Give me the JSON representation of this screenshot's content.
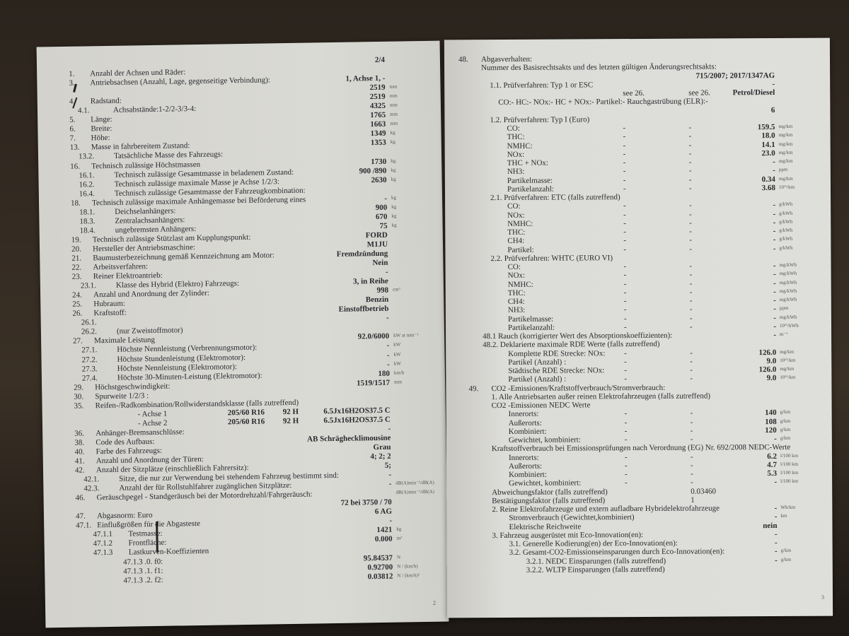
{
  "left_page": {
    "page_number": "2",
    "rows": [
      {
        "v": "2/4"
      },
      {
        "n": "1.",
        "l": "Anzahl der Achsen und Räder:"
      },
      {
        "n": "3.",
        "l": "Antriebsachsen (Anzahl, Lage, gegenseitige Verbindung):",
        "v": "1, Achse 1, -"
      },
      {
        "v": "2519",
        "u": "mm"
      },
      {
        "n": "4.",
        "l": "Radstand:",
        "v": "2519",
        "u": "mm"
      },
      {
        "n": "4.1.",
        "l": "Achsabstände:1-2/2-3/3-4:",
        "i": 1,
        "v": "4325",
        "u": "mm"
      },
      {
        "n": "5.",
        "l": "Länge:",
        "v": "1765",
        "u": "mm"
      },
      {
        "n": "6.",
        "l": "Breite:",
        "v": "1663",
        "u": "mm"
      },
      {
        "n": "7.",
        "l": "Höhe:",
        "v": "1349",
        "u": "kg"
      },
      {
        "n": "13.",
        "l": "Masse in fahrbereitem Zustand:",
        "v": "1353",
        "u": "kg"
      },
      {
        "n": "13.2.",
        "l": "Tatsächliche Masse des Fahrzeugs:",
        "i": 1
      },
      {
        "n": "16.",
        "l": "Technisch zulässige Höchstmassen",
        "v": "1730",
        "u": "kg"
      },
      {
        "n": "16.1.",
        "l": "Technisch zulässige Gesamtmasse in beladenem Zustand:",
        "i": 1,
        "v": "900 /890",
        "u": "kg"
      },
      {
        "n": "16.2.",
        "l": "Technisch zulässige maximale Masse je Achse 1/2/3:",
        "i": 1,
        "v": "2630",
        "u": "kg"
      },
      {
        "n": "16.4.",
        "l": "Technisch zulässige Gesamtmasse der Fahrzeugkombination:",
        "i": 1
      },
      {
        "n": "18.",
        "l": "Technisch zulässige maximale Anhängemasse bei Beförderung eines",
        "v": "-",
        "u": "kg"
      },
      {
        "n": "18.1.",
        "l": "Deichselanhängers:",
        "i": 1,
        "v": "900",
        "u": "kg"
      },
      {
        "n": "18.3.",
        "l": "Zentralachsanhängers:",
        "i": 1,
        "v": "670",
        "u": "kg"
      },
      {
        "n": "18.4.",
        "l": "ungebremsten Anhängers:",
        "i": 1,
        "v": "75",
        "u": "kg"
      },
      {
        "n": "19.",
        "l": "Technisch zulässige Stützlast am Kupplungspunkt:",
        "v": "FORD"
      },
      {
        "n": "20.",
        "l": "Hersteller der Antriebsmaschine:",
        "v": "M1JU"
      },
      {
        "n": "21.",
        "l": "Baumusterbezeichnung gemäß Kennzeichnung am Motor:",
        "v": "Fremdzündung"
      },
      {
        "n": "22.",
        "l": "Arbeitsverfahren:",
        "v": "Nein"
      },
      {
        "n": "23.",
        "l": "Reiner Elektroantrieb:",
        "v": "-"
      },
      {
        "n": "23.1.",
        "l": "Klasse des Hybrid (Elektro) Fahrzeugs:",
        "i": 1,
        "v": "3, in Reihe"
      },
      {
        "n": "24.",
        "l": "Anzahl und Anordnung der Zylinder:",
        "v": "998",
        "u": "cm³"
      },
      {
        "n": "25.",
        "l": "Hubraum:",
        "v": "Benzin"
      },
      {
        "n": "26.",
        "l": "Kraftstoff:",
        "v": "Einstoffbetrieb"
      },
      {
        "n": "26.1.",
        "l": "",
        "i": 1,
        "v": "-"
      },
      {
        "n": "26.2.",
        "l": "(nur Zweistoffmotor)",
        "i": 1
      },
      {
        "n": "27.",
        "l": "Maximale Leistung",
        "v": "92.0/6000",
        "u": "kW at min⁻¹"
      },
      {
        "n": "27.1.",
        "l": "Höchste Nennleistung (Verbrennungsmotor):",
        "i": 1,
        "v": "-",
        "u": "kW"
      },
      {
        "n": "27.2.",
        "l": "Höchste Stundenleistung (Elektromotor):",
        "i": 1,
        "v": "-",
        "u": "kW"
      },
      {
        "n": "27.3.",
        "l": "Höchste Nennleistung (Elektromotor):",
        "i": 1,
        "v": "-",
        "u": "kW"
      },
      {
        "n": "27.4.",
        "l": "Höchste 30-Minuten-Leistung (Elektromotor):",
        "i": 1,
        "v": "180",
        "u": "km/h"
      },
      {
        "n": "29.",
        "l": "Höchstgeschwindigkeit:",
        "v": "1519/1517",
        "u": "mm"
      },
      {
        "n": "30.",
        "l": "Spurweite 1/2/3 :"
      },
      {
        "n": "35.",
        "l": "Reifen-/Radkombination/Rollwiderstandsklasse (falls zutreffend)"
      },
      {
        "l": "- Achse 1",
        "i": 5,
        "c1": "205/60 R16",
        "c2": "92 H",
        "v": "6.5Jx16H2OS37.5 C"
      },
      {
        "l": "- Achse 2",
        "i": 5,
        "c1": "205/60 R16",
        "c2": "92 H",
        "v": "6.5Jx16H2OS37.5 C"
      },
      {
        "n": "36.",
        "l": "Anhänger-Bremsanschlüsse:",
        "v": "-"
      },
      {
        "n": "38.",
        "l": "Code des Aufbaus:",
        "v": "AB Schräghecklimousine"
      },
      {
        "n": "40.",
        "l": "Farbe des Fahrzeugs:",
        "v": "Grau"
      },
      {
        "n": "41.",
        "l": "Anzahl und Anordnung der Türen:",
        "v": "4; 2; 2"
      },
      {
        "n": "42.",
        "l": "Anzahl der Sitzplätze (einschließlich Fahrersitz):",
        "v": "5;"
      },
      {
        "n": "42.1.",
        "l": "Sitze, die nur zur Verwendung bei stehendem Fahrzeug bestimmt sind:",
        "i": 1,
        "v": "-"
      },
      {
        "n": "42.3.",
        "l": "Anzahl der für Rollstuhlfahrer zugänglichen Sitzplätze:",
        "i": 1,
        "v": "-",
        "u": "dB(A)min⁻¹/dB(A)"
      },
      {
        "n": "46.",
        "l": "Geräuschpegel - Standgeräusch bei der Motordrehzahl/Fahrgeräusch:",
        "u": "dB(A)min⁻¹/dB(A)"
      },
      {
        "v": "72 bei 3750 / 70"
      },
      {
        "n": "47.",
        "l": "Abgasnorm: Euro",
        "v": "6 AG"
      },
      {
        "n": "47.1.",
        "l": "Einflußgrößen für die Abgasteste",
        "v": "-"
      },
      {
        "n": "47.1.1",
        "l": "Testmasse:",
        "i": 2,
        "v": "1421",
        "u": "kg"
      },
      {
        "n": "47.1.2",
        "l": "Frontfläche:",
        "i": 2,
        "v": "0.000",
        "u": "m²"
      },
      {
        "n": "47.1.3",
        "l": "Lastkurven-Koeffizienten",
        "i": 2
      },
      {
        "n": "",
        "l": "47.1.3 .0. f0:",
        "i": 3,
        "v": "95.84537",
        "u": "N"
      },
      {
        "n": "",
        "l": "47.1.3 .1. f1:",
        "i": 3,
        "v": "0.92700",
        "u": "N / (km/h)"
      },
      {
        "n": "",
        "l": "47.1.3 .2. f2:",
        "i": 3,
        "v": "0.03812",
        "u": "N / (km/h)²"
      }
    ]
  },
  "right_page": {
    "page_number": "3",
    "rows": [
      {
        "n": "48.",
        "l": "Abgasverhalten:"
      },
      {
        "l": "Nummer des Basisrechtsakts und des letzten gültigen Änderungsrechtsakts:"
      },
      {
        "v": "715/2007; 2017/1347AG"
      },
      {
        "l": "1.1. Prüfverfahren: Typ 1 or ESC",
        "i": 1,
        "v": "-"
      },
      {
        "c1": "see 26.",
        "c2": "see 26.",
        "v": "Petrol/Diesel"
      },
      {
        "l": "CO:- HC:- NOx:- HC + NOx:- Partikel:- Rauchgastrübung (ELR):-",
        "i": 2
      },
      {
        "v": "6"
      },
      {
        "l": "1.2. Prüfverfahren: Typ I (Euro)",
        "i": 1
      },
      {
        "l": "CO:",
        "i": 3,
        "c1": "-",
        "c2": "-",
        "v": "159.5",
        "u": "mg/km"
      },
      {
        "l": "THC:",
        "i": 3,
        "c1": "-",
        "c2": "-",
        "v": "18.0",
        "u": "mg/km"
      },
      {
        "l": "NMHC:",
        "i": 3,
        "c1": "-",
        "c2": "-",
        "v": "14.1",
        "u": "mg/km"
      },
      {
        "l": "NOx:",
        "i": 3,
        "c1": "-",
        "c2": "-",
        "v": "23.0",
        "u": "mg/km"
      },
      {
        "l": "THC + NOx:",
        "i": 3,
        "c1": "-",
        "c2": "-",
        "v": "-",
        "u": "mg/km"
      },
      {
        "l": "NH3:",
        "i": 3,
        "c1": "-",
        "c2": "-",
        "v": "-",
        "u": "ppm"
      },
      {
        "l": "Partikelmasse:",
        "i": 3,
        "c1": "-",
        "c2": "-",
        "v": "0.34",
        "u": "mg/km"
      },
      {
        "l": "Partikelanzahl:",
        "i": 3,
        "c1": "-",
        "c2": "-",
        "v": "3.68",
        "u": "10¹¹/km"
      },
      {
        "l": "2.1. Prüfverfahren: ETC (falls zutreffend)",
        "i": 1
      },
      {
        "l": "CO:",
        "i": 3,
        "c1": "-",
        "c2": "-",
        "v": "-",
        "u": "g/kWh"
      },
      {
        "l": "NOx:",
        "i": 3,
        "c1": "-",
        "c2": "-",
        "v": "-",
        "u": "g/kWh"
      },
      {
        "l": "NMHC:",
        "i": 3,
        "c1": "-",
        "c2": "-",
        "v": "-",
        "u": "g/kWh"
      },
      {
        "l": "THC:",
        "i": 3,
        "c1": "-",
        "c2": "-",
        "v": "-",
        "u": "g/kWh"
      },
      {
        "l": "CH4:",
        "i": 3,
        "c1": "-",
        "c2": "-",
        "v": "-",
        "u": "g/kWh"
      },
      {
        "l": "Partikel:",
        "i": 3,
        "c1": "-",
        "c2": "-",
        "v": "-",
        "u": "g/kWh"
      },
      {
        "l": "2.2. Prüfverfahren: WHTC (EURO VI)",
        "i": 1
      },
      {
        "l": "CO:",
        "i": 3,
        "c1": "-",
        "c2": "-",
        "v": "-",
        "u": "mg/kWh"
      },
      {
        "l": "NOx:",
        "i": 3,
        "c1": "-",
        "c2": "-",
        "v": "-",
        "u": "mg/kWh"
      },
      {
        "l": "NMHC:",
        "i": 3,
        "c1": "-",
        "c2": "-",
        "v": "-",
        "u": "mg/kWh"
      },
      {
        "l": "THC:",
        "i": 3,
        "c1": "-",
        "c2": "-",
        "v": "-",
        "u": "mg/kWh"
      },
      {
        "l": "CH4:",
        "i": 3,
        "c1": "-",
        "c2": "-",
        "v": "-",
        "u": "mg/kWh"
      },
      {
        "l": "NH3:",
        "i": 3,
        "c1": "-",
        "c2": "-",
        "v": "-",
        "u": "ppm"
      },
      {
        "l": "Partikelmasse:",
        "i": 3,
        "c1": "-",
        "c2": "-",
        "v": "-",
        "u": "mg/kWh"
      },
      {
        "l": "Partikelanzahl:",
        "i": 3,
        "c1": "-",
        "c2": "-",
        "v": "-",
        "u": "10¹¹/kWh"
      },
      {
        "n": "",
        "l": "48.1 Rauch (korrigierter Wert des Absorptionskoeffizienten):",
        "i": 0,
        "v": "-",
        "u": "m⁻¹"
      },
      {
        "l": "48.2. Deklarierte maximale RDE Werte (falls zutreffend)"
      },
      {
        "l": "Komplette RDE Strecke: NOx:",
        "i": 3,
        "c1": "-",
        "c2": "-",
        "v": "126.0",
        "u": "mg/km"
      },
      {
        "l": "Partikel (Anzahl)                :",
        "i": 3,
        "c1": "-",
        "c2": "-",
        "v": "9.0",
        "u": "10¹¹/km"
      },
      {
        "l": "Städtische RDE Strecke: NOx:",
        "i": 3,
        "c1": "-",
        "c2": "-",
        "v": "126.0",
        "u": "mg/km"
      },
      {
        "l": "Partikel (Anzahl)                :",
        "i": 3,
        "c1": "-",
        "c2": "-",
        "v": "9.0",
        "u": "10¹¹/km"
      },
      {
        "n": "49.",
        "l": "CO2 -Emissionen/Kraftstoffverbrauch/Stromverbrauch:",
        "i": 1
      },
      {
        "l": "1. Alle Antriebsarten außer reinen Elektrofahrzeugen (falls zutreffend)",
        "i": 1
      },
      {
        "l": "CO2 -Emissionen NEDC Werte",
        "i": 1
      },
      {
        "l": "Innerorts:",
        "i": 3,
        "c1": "-",
        "c2": "-",
        "v": "140",
        "u": "g/km"
      },
      {
        "l": "Außerorts:",
        "i": 3,
        "c1": "-",
        "c2": "-",
        "v": "108",
        "u": "g/km"
      },
      {
        "l": "Kombiniert:",
        "i": 3,
        "c1": "-",
        "c2": "-",
        "v": "120",
        "u": "g/km"
      },
      {
        "l": "Gewichtet, kombiniert:",
        "i": 3,
        "c1": "-",
        "c2": "-",
        "v": "-",
        "u": "g/km"
      },
      {
        "l": "Kraftstoffverbrauch bei Emissionsprüfungen nach Verordnung (EG) Nr. 692/2008 NEDC-Werte",
        "i": 1
      },
      {
        "l": "Innerorts:",
        "i": 3,
        "c1": "-",
        "c2": "-",
        "v": "6.2",
        "u": "l/100 km"
      },
      {
        "l": "Außerorts:",
        "i": 3,
        "c1": "-",
        "c2": "-",
        "v": "4.7",
        "u": "l/100 km"
      },
      {
        "l": "Kombiniert:",
        "i": 3,
        "c1": "-",
        "c2": "-",
        "v": "5.3",
        "u": "l/100 km"
      },
      {
        "l": "Gewichtet, kombiniert:",
        "i": 3,
        "c1": "-",
        "c2": "-",
        "v": "-",
        "u": "l/100 km"
      },
      {
        "l": "Abweichungsfaktor (falls zutreffend)",
        "i": 1,
        "c2": "0.03460"
      },
      {
        "l": "Bestätigungsfaktor (falls zutreffend)",
        "i": 1,
        "c2": "1"
      },
      {
        "l": "2. Reine Elektrofahrzeuge und extern aufladbare Hybridelektrofahrzeuge",
        "i": 1,
        "v": "-",
        "u": "Wh/km"
      },
      {
        "l": "Stromverbrauch (Gewichtet,kombiniert)",
        "i": 3,
        "v": "-",
        "u": "km"
      },
      {
        "l": "Elektrische Reichweite",
        "i": 3,
        "v": "nein"
      },
      {
        "l": "3. Fahrzeug ausgerüstet mit Eco-Innovation(en):",
        "i": 1,
        "v": "-"
      },
      {
        "l": "3.1. Generelle Kodierung(en) der Eco-Innovation(en):",
        "i": 3,
        "v": "-"
      },
      {
        "l": "3.2. Gesamt-CO2-Emissionseinsparungen durch Eco-Innovation(en):",
        "i": 3,
        "v": "-",
        "u": "g/km"
      },
      {
        "l": "3.2.1. NEDC Einsparungen (falls zutreffend)",
        "i": 5,
        "v": "-",
        "u": "g/km"
      },
      {
        "l": "3.2.2. WLTP Einsparungen (falls zutreffend)",
        "i": 5
      }
    ]
  }
}
